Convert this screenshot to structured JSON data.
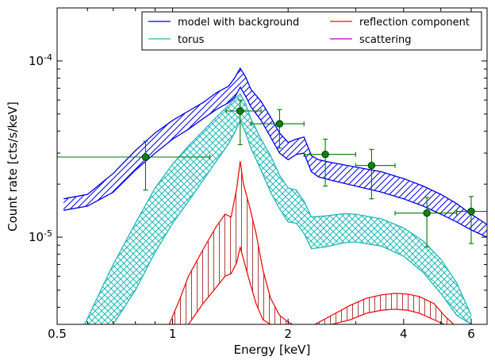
{
  "chart_data": {
    "type": "line",
    "xlabel": "Energy [keV]",
    "ylabel": "Count rate [cts/s/keV]",
    "xscale": "log",
    "yscale": "log",
    "xlim": [
      0.5,
      6.6
    ],
    "ylim": [
      3.2e-06,
      0.0002
    ],
    "xticks": [
      {
        "value": 0.5,
        "label": "0.5"
      },
      {
        "value": 1,
        "label": "1"
      },
      {
        "value": 2,
        "label": "2"
      },
      {
        "value": 4,
        "label": "4"
      },
      {
        "value": 6,
        "label": "6"
      }
    ],
    "yticks": [
      {
        "value": 1e-05,
        "base": "10",
        "exp": "-5"
      },
      {
        "value": 0.0001,
        "base": "10",
        "exp": "-4"
      }
    ],
    "legend": {
      "placement": "top-right",
      "entries": [
        {
          "label": "model with background",
          "color": "#0000ee"
        },
        {
          "label": "torus",
          "color": "#20b8b8"
        },
        {
          "label": "reflection component",
          "color": "#ee1111"
        },
        {
          "label": "scattering",
          "color": "#bb00bb"
        }
      ]
    },
    "series": [
      {
        "name": "model with background",
        "color": "#0000ee",
        "x": [
          0.52,
          0.6,
          0.7,
          0.8,
          0.9,
          1.0,
          1.1,
          1.2,
          1.3,
          1.4,
          1.45,
          1.5,
          1.55,
          1.6,
          1.7,
          1.8,
          1.9,
          2.0,
          2.1,
          2.2,
          2.3,
          2.4,
          2.6,
          3.0,
          3.5,
          4.0,
          4.5,
          5.0,
          5.5,
          6.0,
          6.6
        ],
        "upper": [
          1.65e-05,
          1.75e-05,
          2.3e-05,
          3.1e-05,
          3.9e-05,
          4.6e-05,
          5.2e-05,
          5.8e-05,
          6.6e-05,
          7.2e-05,
          8e-05,
          9.1e-05,
          8.1e-05,
          6.9e-05,
          5.9e-05,
          4.8e-05,
          3.9e-05,
          3.45e-05,
          3.6e-05,
          3.7e-05,
          2.9e-05,
          2.75e-05,
          2.65e-05,
          2.5e-05,
          2.35e-05,
          2.15e-05,
          1.95e-05,
          1.75e-05,
          1.55e-05,
          1.35e-05,
          1.18e-05
        ],
        "lower": [
          1.42e-05,
          1.5e-05,
          1.8e-05,
          2.4e-05,
          3e-05,
          3.6e-05,
          4.1e-05,
          4.7e-05,
          5.3e-05,
          5.8e-05,
          6.2e-05,
          7.1e-05,
          6.3e-05,
          5.5e-05,
          4.6e-05,
          3.7e-05,
          3e-05,
          2.75e-05,
          2.95e-05,
          3e-05,
          2.35e-05,
          2.2e-05,
          2.1e-05,
          1.95e-05,
          1.8e-05,
          1.65e-05,
          1.5e-05,
          1.35e-05,
          1.22e-05,
          1.1e-05,
          1e-05
        ]
      },
      {
        "name": "torus",
        "color": "#20b8b8",
        "x": [
          0.59,
          0.65,
          0.7,
          0.8,
          0.9,
          1.0,
          1.1,
          1.2,
          1.3,
          1.4,
          1.45,
          1.5,
          1.55,
          1.6,
          1.7,
          1.8,
          1.9,
          2.0,
          2.1,
          2.2,
          2.3,
          2.5,
          2.8,
          3.0,
          3.5,
          4.0,
          4.5,
          5.0,
          5.5,
          6.0
        ],
        "upper": [
          3.2e-06,
          5e-06,
          7e-06,
          1.2e-05,
          1.9e-05,
          2.6e-05,
          3.3e-05,
          4e-05,
          4.8e-05,
          5.6e-05,
          6.1e-05,
          6.5e-05,
          5.7e-05,
          4.7e-05,
          3.6e-05,
          2.9e-05,
          2.25e-05,
          1.9e-05,
          1.85e-05,
          1.6e-05,
          1.3e-05,
          1.32e-05,
          1.36e-05,
          1.35e-05,
          1.27e-05,
          1.13e-05,
          9.5e-06,
          7.5e-06,
          5.5e-06,
          3.6e-06
        ],
        "lower": [
          null,
          null,
          3.2e-06,
          5e-06,
          8.2e-06,
          1.2e-05,
          1.6e-05,
          2.1e-05,
          2.7e-05,
          3.4e-05,
          3.9e-05,
          4.6e-05,
          3.9e-05,
          3.2e-05,
          2.4e-05,
          1.8e-05,
          1.45e-05,
          1.22e-05,
          1.2e-05,
          1.05e-05,
          8.6e-06,
          8.8e-06,
          9.3e-06,
          9.4e-06,
          8.9e-06,
          7.8e-06,
          6.3e-06,
          4.8e-06,
          3.6e-06,
          3.2e-06
        ]
      },
      {
        "name": "reflection component",
        "color": "#ee1111",
        "x": [
          0.98,
          1.05,
          1.1,
          1.2,
          1.3,
          1.37,
          1.42,
          1.47,
          1.5,
          1.53,
          1.58,
          1.65,
          1.72,
          1.8,
          1.9,
          2.0,
          2.05
        ],
        "upper": [
          3.2e-06,
          4.6e-06,
          6e-06,
          8.5e-06,
          1.15e-05,
          1.35e-05,
          1.3e-05,
          1.9e-05,
          2.7e-05,
          2e-05,
          1.55e-05,
          1.05e-05,
          6.5e-06,
          4.5e-06,
          3.6e-06,
          3.3e-06,
          3.2e-06
        ],
        "lower": [
          null,
          null,
          3.2e-06,
          4.2e-06,
          5.2e-06,
          6e-06,
          6.2e-06,
          7.2e-06,
          8.8e-06,
          7.5e-06,
          5.8e-06,
          4.2e-06,
          3.4e-06,
          3.2e-06,
          null,
          null,
          null
        ],
        "x_high": [
          2.35,
          2.6,
          2.9,
          3.2,
          3.5,
          3.8,
          4.1,
          4.4,
          4.8,
          5.1,
          5.4
        ],
        "upper_high": [
          3.2e-06,
          3.6e-06,
          4.1e-06,
          4.5e-06,
          4.7e-06,
          4.8e-06,
          4.75e-06,
          4.6e-06,
          4.2e-06,
          3.6e-06,
          3.2e-06
        ],
        "lower_high": [
          null,
          3.2e-06,
          3.4e-06,
          3.7e-06,
          3.85e-06,
          3.9e-06,
          3.85e-06,
          3.7e-06,
          3.4e-06,
          3.2e-06,
          null
        ]
      },
      {
        "name": "scattering",
        "color": "#bb00bb",
        "x": [],
        "y": []
      }
    ],
    "data_points": {
      "color": "#007700",
      "points": [
        {
          "x": 0.85,
          "y": 2.85e-05,
          "xlo": 0.5,
          "xhi": 1.25,
          "ylo": 1.85e-05,
          "yhi": 3.5e-05
        },
        {
          "x": 1.5,
          "y": 5.2e-05,
          "xlo": 1.38,
          "xhi": 1.7,
          "ylo": 3.35e-05,
          "yhi": 6e-05
        },
        {
          "x": 1.9,
          "y": 4.4e-05,
          "xlo": 1.6,
          "xhi": 2.2,
          "ylo": 3.2e-05,
          "yhi": 5.3e-05
        },
        {
          "x": 2.5,
          "y": 2.95e-05,
          "xlo": 2.2,
          "xhi": 3.0,
          "ylo": 1.95e-05,
          "yhi": 3.6e-05
        },
        {
          "x": 3.3,
          "y": 2.55e-05,
          "xlo": 3.0,
          "xhi": 3.8,
          "ylo": 1.65e-05,
          "yhi": 3.15e-05
        },
        {
          "x": 4.6,
          "y": 1.37e-05,
          "xlo": 3.8,
          "xhi": 5.5,
          "ylo": 8.8e-06,
          "yhi": 1.68e-05
        },
        {
          "x": 6.0,
          "y": 1.4e-05,
          "xlo": 5.5,
          "xhi": 6.6,
          "ylo": 9.2e-06,
          "yhi": 1.7e-05
        }
      ]
    }
  }
}
